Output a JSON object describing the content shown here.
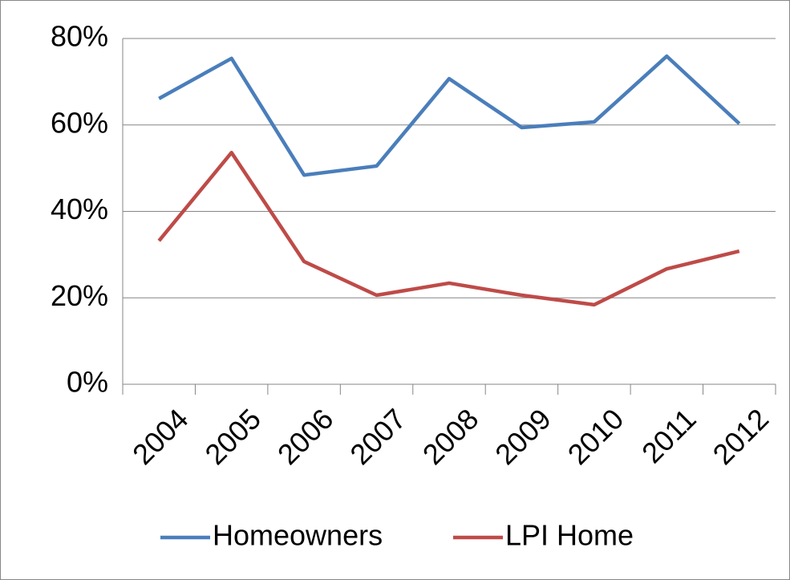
{
  "chart_data": {
    "type": "line",
    "categories": [
      "2004",
      "2005",
      "2006",
      "2007",
      "2008",
      "2009",
      "2010",
      "2011",
      "2012"
    ],
    "series": [
      {
        "name": "Homeowners",
        "color": "#4a7ebb",
        "values": [
          66.1,
          75.4,
          48.4,
          50.5,
          70.7,
          59.4,
          60.7,
          75.9,
          60.3
        ]
      },
      {
        "name": "LPI Home",
        "color": "#be4b48",
        "values": [
          33.2,
          53.6,
          28.4,
          20.6,
          23.4,
          20.6,
          18.4,
          26.7,
          30.8
        ]
      }
    ],
    "ylim": [
      0,
      80
    ],
    "yticks": [
      {
        "value": 0,
        "label": "0%"
      },
      {
        "value": 20,
        "label": "20%"
      },
      {
        "value": 40,
        "label": "40%"
      },
      {
        "value": 60,
        "label": "60%"
      },
      {
        "value": 80,
        "label": "80%"
      }
    ],
    "grid": true,
    "legend": "bottom"
  }
}
